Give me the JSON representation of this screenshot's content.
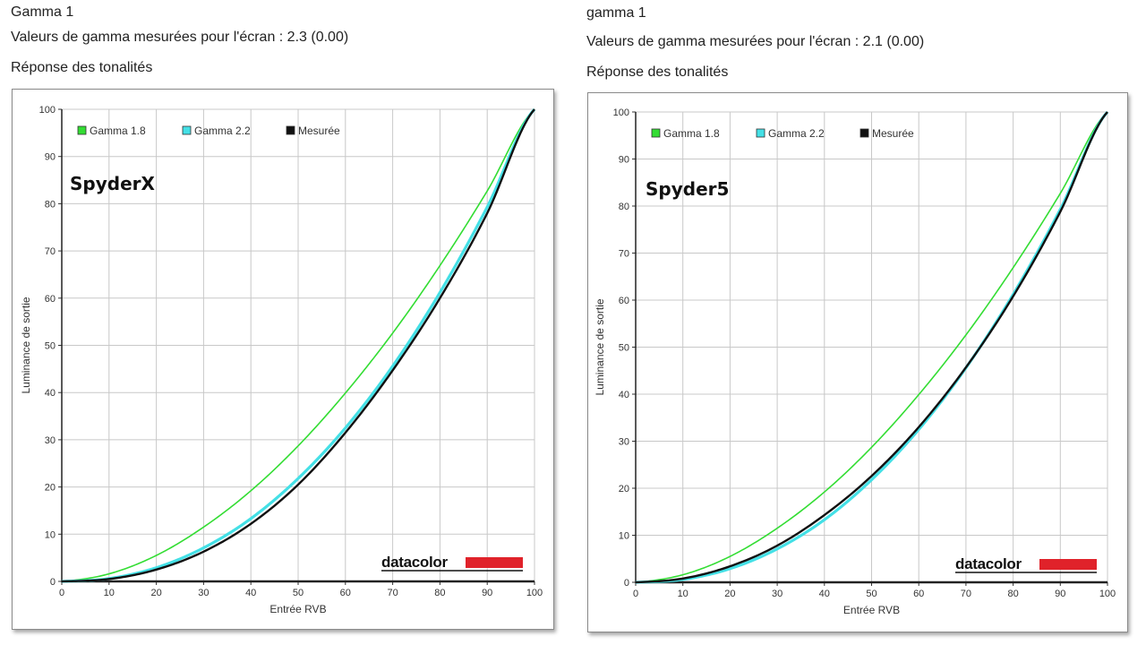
{
  "colors": {
    "gamma18": "#33dd33",
    "gamma22": "#44e0e6",
    "measured": "#111111",
    "grid": "#c8c8c8",
    "logo_bar": "#e0222a"
  },
  "panels": [
    {
      "title": "Gamma 1",
      "measured_text": "Valeurs de gamma mesurées pour l'écran : 2.3 (0.00)",
      "tone_label": "Réponse des tonalités",
      "device_label": "SpyderX",
      "logo_text": "datacolor"
    },
    {
      "title": "gamma 1",
      "measured_text": "Valeurs de gamma mesurées pour l'écran : 2.1 (0.00)",
      "tone_label": "Réponse des tonalités",
      "device_label": "Spyder5",
      "logo_text": "datacolor"
    }
  ],
  "chart_data": [
    {
      "type": "line",
      "xlabel": "Entrée RVB",
      "ylabel": "Luminance de sortie",
      "xlim": [
        0,
        100
      ],
      "ylim": [
        0,
        100
      ],
      "x_ticks": [
        "0",
        "10",
        "20",
        "30",
        "40",
        "50",
        "60",
        "70",
        "80",
        "90",
        "100"
      ],
      "y_ticks": [
        "0",
        "10",
        "20",
        "30",
        "40",
        "50",
        "60",
        "70",
        "80",
        "90",
        "100"
      ],
      "grid": true,
      "legend_position": "top-left",
      "series": [
        {
          "name": "Gamma 1.8",
          "color": "#33dd33",
          "x": [
            0,
            10,
            20,
            30,
            40,
            50,
            60,
            70,
            80,
            90,
            100
          ],
          "y": [
            0,
            1.6,
            5.5,
            11.5,
            19.2,
            28.7,
            39.9,
            52.6,
            66.9,
            82.7,
            100
          ]
        },
        {
          "name": "Gamma 2.2",
          "color": "#44e0e6",
          "x": [
            0,
            10,
            20,
            30,
            40,
            50,
            60,
            70,
            80,
            90,
            100
          ],
          "y": [
            0,
            0.6,
            2.9,
            7.1,
            13.3,
            21.8,
            32.5,
            45.6,
            61.2,
            79.3,
            100
          ]
        },
        {
          "name": "Mesurée",
          "color": "#111111",
          "x": [
            0,
            10,
            20,
            30,
            40,
            50,
            60,
            70,
            80,
            90,
            100
          ],
          "y": [
            0,
            0.5,
            2.5,
            6.3,
            12.2,
            20.5,
            31.5,
            44.7,
            60.0,
            78.0,
            100
          ]
        }
      ]
    },
    {
      "type": "line",
      "xlabel": "Entrée RVB",
      "ylabel": "Luminance de sortie",
      "xlim": [
        0,
        100
      ],
      "ylim": [
        0,
        100
      ],
      "x_ticks": [
        "0",
        "10",
        "20",
        "30",
        "40",
        "50",
        "60",
        "70",
        "80",
        "90",
        "100"
      ],
      "y_ticks": [
        "0",
        "10",
        "20",
        "30",
        "40",
        "50",
        "60",
        "70",
        "80",
        "90",
        "100"
      ],
      "grid": true,
      "legend_position": "top-left",
      "series": [
        {
          "name": "Gamma 1.8",
          "color": "#33dd33",
          "x": [
            0,
            10,
            20,
            30,
            40,
            50,
            60,
            70,
            80,
            90,
            100
          ],
          "y": [
            0,
            1.6,
            5.5,
            11.5,
            19.2,
            28.7,
            39.9,
            52.6,
            66.9,
            82.7,
            100
          ]
        },
        {
          "name": "Gamma 2.2",
          "color": "#44e0e6",
          "x": [
            0,
            10,
            20,
            30,
            40,
            50,
            60,
            70,
            80,
            90,
            100
          ],
          "y": [
            0,
            0.6,
            2.9,
            7.1,
            13.3,
            21.8,
            32.5,
            45.6,
            61.2,
            79.3,
            100
          ]
        },
        {
          "name": "Mesurée",
          "color": "#111111",
          "x": [
            0,
            10,
            20,
            30,
            40,
            50,
            60,
            70,
            80,
            90,
            100
          ],
          "y": [
            0,
            0.8,
            3.4,
            7.8,
            14.3,
            22.6,
            33.0,
            45.7,
            60.8,
            78.8,
            100
          ]
        }
      ]
    }
  ]
}
